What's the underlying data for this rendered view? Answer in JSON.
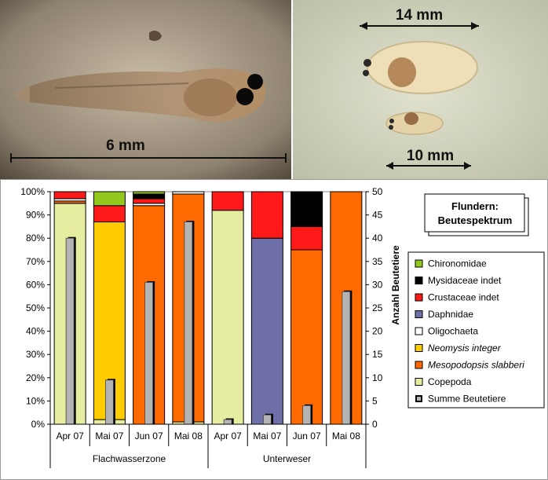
{
  "photos": {
    "left": {
      "scale_label": "6 mm"
    },
    "right": {
      "scale_label_top": "14 mm",
      "scale_label_bottom": "10 mm"
    }
  },
  "chart_data": {
    "type": "bar",
    "title_line1": "Flundern:",
    "title_line2": "Beutespektrum",
    "categories": [
      "Apr 07",
      "Mai 07",
      "Jun 07",
      "Mai 08",
      "Apr 07",
      "Mai 07",
      "Jun 07",
      "Mai 08"
    ],
    "groups": [
      {
        "label": "Flachwasserzone",
        "from": 0,
        "to": 3
      },
      {
        "label": "Unterweser",
        "from": 4,
        "to": 7
      }
    ],
    "left_axis": {
      "ticks": [
        "0%",
        "10%",
        "20%",
        "30%",
        "40%",
        "50%",
        "60%",
        "70%",
        "80%",
        "90%",
        "100%"
      ],
      "ylim": [
        0,
        100
      ]
    },
    "right_axis": {
      "label": "Anzahl Beutetiere",
      "ticks": [
        "0",
        "5",
        "10",
        "15",
        "20",
        "25",
        "30",
        "35",
        "40",
        "45",
        "50"
      ],
      "ylim": [
        0,
        50
      ]
    },
    "stack_order": [
      "Copepoda",
      "Mesopodopsis slabberi",
      "Neomysis integer",
      "Oligochaeta",
      "Daphnidae",
      "Crustaceae indet",
      "Mysidaceae indet",
      "Chironomidae"
    ],
    "series": [
      {
        "name": "Chironomidae",
        "color": "#92c81e",
        "values": [
          0,
          6,
          1,
          0,
          0,
          0,
          0,
          0
        ]
      },
      {
        "name": "Mysidaceae indet",
        "color": "#000000",
        "values": [
          0,
          0,
          2,
          0,
          0,
          0,
          15,
          0
        ]
      },
      {
        "name": "Crustaceae indet",
        "color": "#ff1a1a",
        "values": [
          3,
          7,
          2,
          0,
          8,
          20,
          10,
          0
        ]
      },
      {
        "name": "Daphnidae",
        "color": "#6e6ea8",
        "values": [
          0,
          0,
          0,
          0,
          0,
          80,
          0,
          0
        ]
      },
      {
        "name": "Oligochaeta",
        "color": "#ffffff",
        "values": [
          1,
          0,
          1,
          1,
          0,
          0,
          0,
          0
        ]
      },
      {
        "name": "Neomysis integer",
        "color": "#ffcc00",
        "italic": true,
        "values": [
          0,
          85,
          0,
          0,
          0,
          0,
          0,
          0
        ]
      },
      {
        "name": "Mesopodopsis slabberi",
        "color": "#ff6a00",
        "italic": true,
        "values": [
          1,
          0,
          94,
          98,
          0,
          0,
          75,
          100
        ]
      },
      {
        "name": "Copepoda",
        "color": "#e6eca0",
        "values": [
          95,
          2,
          0,
          1,
          92,
          0,
          0,
          0
        ]
      }
    ],
    "summe": {
      "name": "Summe Beutetiere",
      "color": "#b4b4b4",
      "values": [
        40,
        9.5,
        30.5,
        43.5,
        1,
        2,
        4,
        28.5
      ]
    }
  }
}
